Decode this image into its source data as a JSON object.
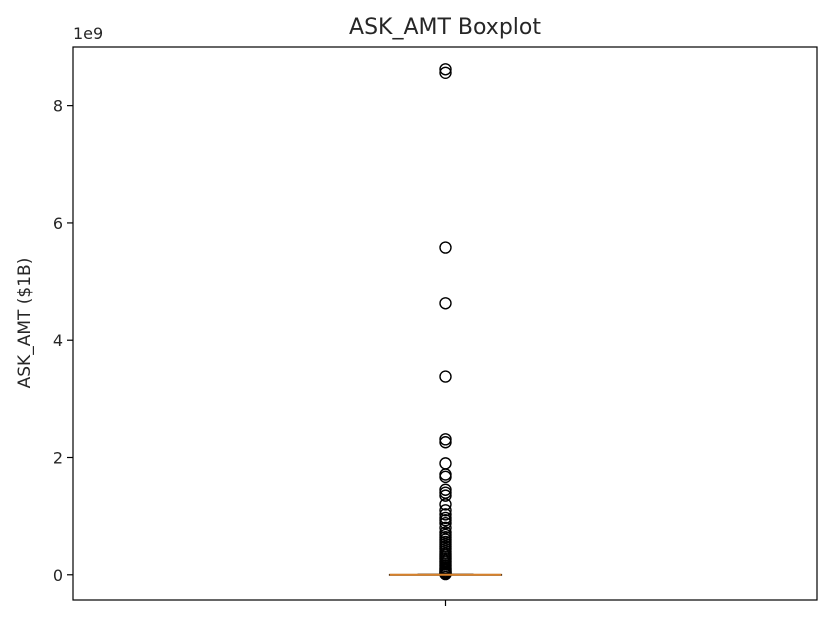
{
  "chart_data": {
    "type": "boxplot",
    "title": "ASK_AMT Boxplot",
    "ylabel": "ASK_AMT ($1B)",
    "xlabel": "",
    "offset_label": "1e9",
    "ylim": [
      -430000000,
      9000000000
    ],
    "yticks": [
      0,
      2000000000,
      4000000000,
      6000000000,
      8000000000
    ],
    "ytick_labels": [
      "0",
      "2",
      "4",
      "6",
      "8"
    ],
    "xticks": [
      1
    ],
    "xtick_labels": [
      ""
    ],
    "grid": false,
    "legend": "none",
    "box": {
      "x": 1,
      "whisker_low": 0,
      "q1": 0,
      "median": 0,
      "q3": 4000000,
      "whisker_high": 9000000
    },
    "outliers": [
      8620000000,
      8560000000,
      5580000000,
      4630000000,
      3380000000,
      2310000000,
      2260000000,
      1900000000,
      1710000000,
      1670000000,
      1450000000,
      1400000000,
      1350000000,
      1200000000,
      1100000000,
      1030000000,
      970000000,
      930000000,
      880000000,
      800000000,
      720000000,
      680000000,
      640000000,
      600000000,
      560000000,
      520000000,
      480000000,
      440000000,
      400000000,
      360000000,
      330000000,
      300000000,
      270000000,
      240000000,
      210000000,
      180000000,
      150000000,
      120000000,
      100000000,
      80000000,
      60000000,
      45000000,
      30000000,
      20000000,
      12000000
    ],
    "colors": {
      "median": "#d9822b",
      "box": "#000000",
      "outlier": "#000000",
      "axes": "#000000"
    }
  }
}
